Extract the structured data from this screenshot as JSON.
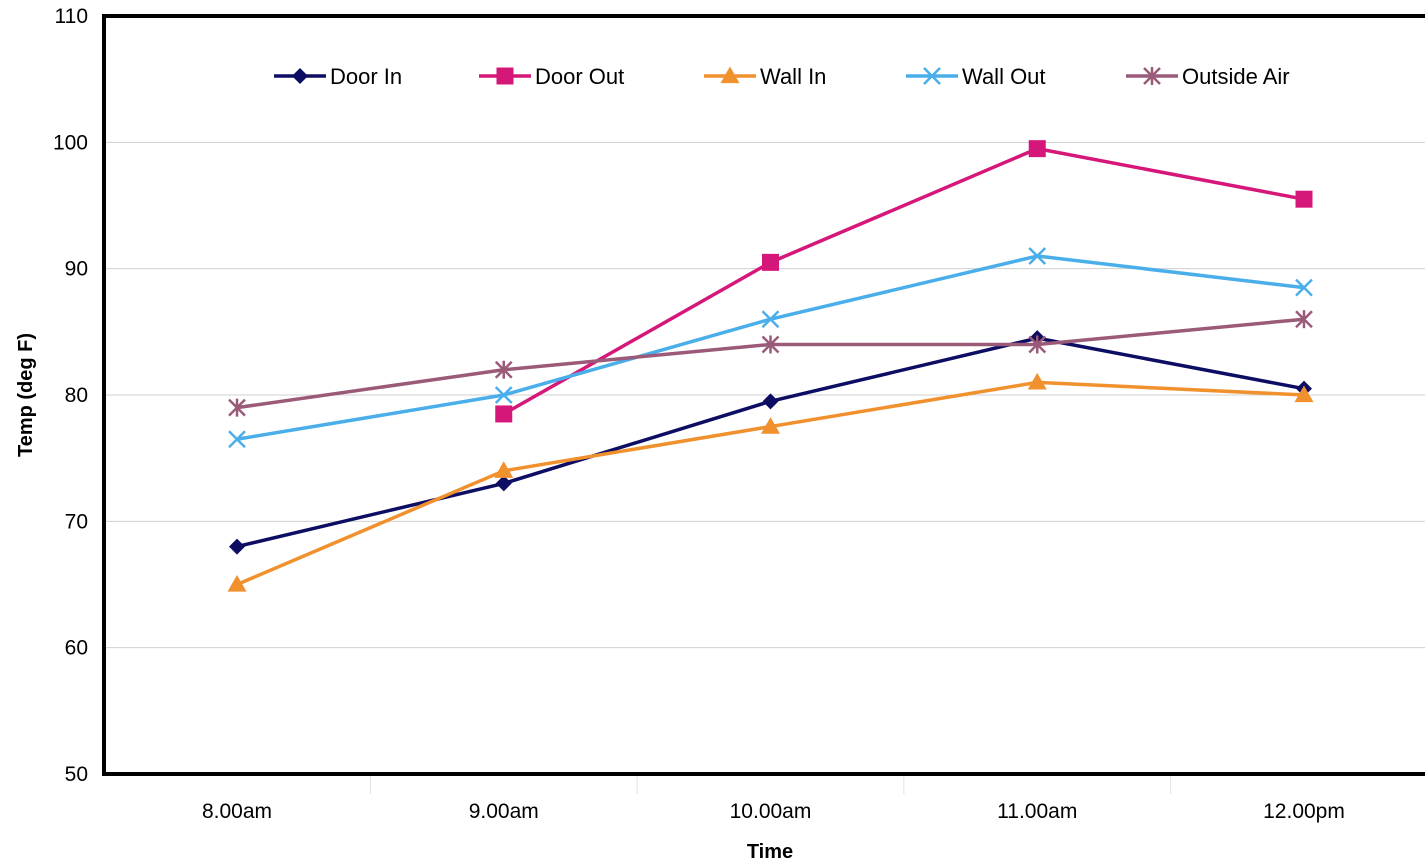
{
  "chart_data": {
    "type": "line",
    "title": "",
    "xlabel": "Time",
    "ylabel": "Temp (deg F)",
    "categories": [
      "8.00am",
      "9.00am",
      "10.00am",
      "11.00am",
      "12.00pm"
    ],
    "ylim": [
      50,
      110
    ],
    "yticks": [
      "50",
      "60",
      "70",
      "80",
      "90",
      "100",
      "110"
    ],
    "grid": "horizontal",
    "legend_position": "top",
    "series": [
      {
        "name": "Door In",
        "marker": "diamond",
        "color": "#0d0d63",
        "values": [
          68,
          73,
          79.5,
          84.5,
          80.5
        ]
      },
      {
        "name": "Door Out",
        "marker": "square",
        "color": "#d6177a",
        "values": [
          null,
          78.5,
          90.5,
          99.5,
          95.5
        ]
      },
      {
        "name": "Wall In",
        "marker": "triangle",
        "color": "#f0912e",
        "values": [
          65,
          74,
          77.5,
          81,
          80
        ]
      },
      {
        "name": "Wall Out",
        "marker": "x",
        "color": "#4aaeea",
        "values": [
          76.5,
          80,
          86,
          91,
          88.5
        ]
      },
      {
        "name": "Outside Air",
        "marker": "star",
        "color": "#9a5a78",
        "values": [
          79,
          82,
          84,
          84,
          86
        ]
      }
    ]
  }
}
